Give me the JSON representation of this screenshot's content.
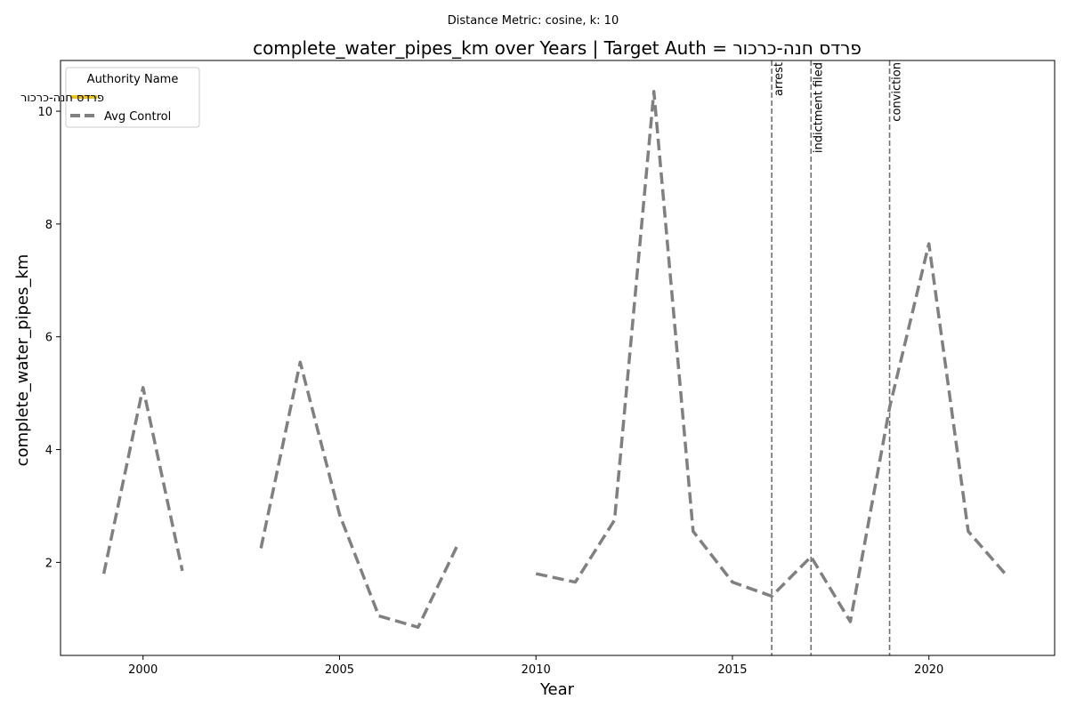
{
  "figure": {
    "suptitle": "Distance Metric: cosine, k: 10"
  },
  "chart_data": {
    "type": "line",
    "title": "complete_water_pipes_km over Years | Target Auth = פרדס חנה-כרכור",
    "xlabel": "Year",
    "ylabel": "complete_water_pipes_km",
    "xlim": [
      1997.9,
      2023.2
    ],
    "ylim": [
      0.35,
      10.9
    ],
    "xticks": [
      2000,
      2005,
      2010,
      2015,
      2020
    ],
    "yticks": [
      2,
      4,
      6,
      8,
      10
    ],
    "grid": false,
    "legend": {
      "title": "Authority Name",
      "placement": "top-left",
      "entries": [
        {
          "label": "פרדס חנה-כרכור",
          "color": "#e8c31c",
          "style": "solid"
        },
        {
          "label": "Avg Control",
          "color": "#808080",
          "style": "dashed"
        }
      ]
    },
    "series": [
      {
        "name": "פרדס חנה-כרכור",
        "color": "#e8c31c",
        "style": "solid",
        "points": []
      },
      {
        "name": "Avg Control",
        "color": "#808080",
        "style": "dashed",
        "points": [
          [
            1999,
            1.8
          ],
          [
            2000,
            5.1
          ],
          [
            2001,
            1.85
          ],
          [
            2002,
            null
          ],
          [
            2003,
            2.25
          ],
          [
            2004,
            5.55
          ],
          [
            2005,
            2.85
          ],
          [
            2006,
            1.05
          ],
          [
            2007,
            0.85
          ],
          [
            2008,
            2.3
          ],
          [
            2009,
            null
          ],
          [
            2010,
            1.8
          ],
          [
            2011,
            1.65
          ],
          [
            2012,
            2.75
          ],
          [
            2013,
            10.35
          ],
          [
            2014,
            2.55
          ],
          [
            2015,
            1.65
          ],
          [
            2016,
            1.4
          ],
          [
            2017,
            2.1
          ],
          [
            2018,
            0.95
          ],
          [
            2019,
            4.75
          ],
          [
            2020,
            7.65
          ],
          [
            2021,
            2.55
          ],
          [
            2022,
            1.75
          ]
        ]
      }
    ],
    "events": [
      {
        "x": 2016,
        "label": "arrest"
      },
      {
        "x": 2017,
        "label": "indictment filed"
      },
      {
        "x": 2019,
        "label": "conviction"
      }
    ]
  }
}
